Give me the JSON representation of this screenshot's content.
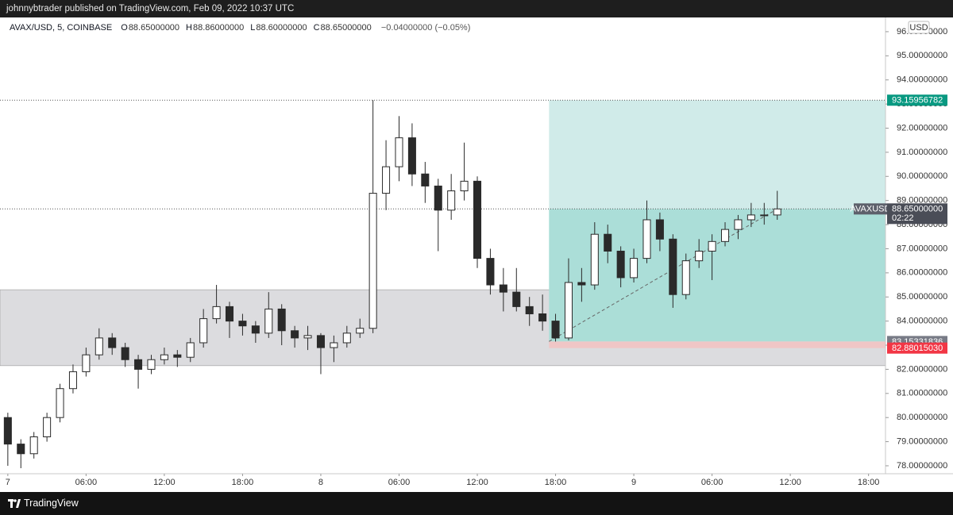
{
  "header": {
    "text": "johnnybtrader published on TradingView.com, Feb 09, 2022 10:37 UTC"
  },
  "chart_data": {
    "type": "candlestick",
    "legend": {
      "symbol": "AVAX/USD, 5, COINBASE",
      "items": [
        {
          "label": "O",
          "value": "88.65000000"
        },
        {
          "label": "H",
          "value": "88.86000000"
        },
        {
          "label": "L",
          "value": "88.60000000"
        },
        {
          "label": "C",
          "value": "88.65000000"
        }
      ],
      "change": "−0.04000000 (−0.05%)"
    },
    "currency": "USD",
    "color": "#2a2a2a",
    "x": [
      0,
      1,
      2,
      3,
      4,
      5,
      6,
      7,
      8,
      9,
      10,
      11,
      12,
      13,
      14,
      15,
      16,
      17,
      18,
      19,
      20,
      21,
      22,
      23,
      24,
      25,
      26,
      27,
      28,
      29,
      30,
      31,
      32,
      33,
      34,
      35,
      36,
      37,
      38,
      39,
      40,
      41,
      42,
      43,
      44,
      45,
      46,
      47,
      48,
      49,
      50,
      51,
      52,
      53,
      54,
      55,
      56,
      57,
      58,
      59
    ],
    "open": [
      80.0,
      78.9,
      78.5,
      79.2,
      80.0,
      81.2,
      81.9,
      82.6,
      83.3,
      82.9,
      82.4,
      82.0,
      82.4,
      82.6,
      82.5,
      83.1,
      84.1,
      84.6,
      84.0,
      83.8,
      83.5,
      84.5,
      83.6,
      83.3,
      83.4,
      82.9,
      83.1,
      83.5,
      83.7,
      89.3,
      90.4,
      91.6,
      90.1,
      89.6,
      88.6,
      89.4,
      89.8,
      86.6,
      85.5,
      85.2,
      84.6,
      84.3,
      84.0,
      83.3,
      85.6,
      85.5,
      87.6,
      86.9,
      85.8,
      86.6,
      88.2,
      87.4,
      85.1,
      86.5,
      86.9,
      87.3,
      87.8,
      88.2,
      88.4,
      88.4
    ],
    "high": [
      80.2,
      79.1,
      79.4,
      80.2,
      81.4,
      82.2,
      82.9,
      83.7,
      83.5,
      83.1,
      82.6,
      82.6,
      82.9,
      82.8,
      83.3,
      84.5,
      85.5,
      84.8,
      84.3,
      84.0,
      85.2,
      84.7,
      83.8,
      83.8,
      83.5,
      83.4,
      83.8,
      84.1,
      93.16,
      91.5,
      92.5,
      92.2,
      90.6,
      89.9,
      90.1,
      91.4,
      90.0,
      87.0,
      86.2,
      86.2,
      85.0,
      85.1,
      84.3,
      86.6,
      86.2,
      88.1,
      88.0,
      87.1,
      87.0,
      89.0,
      88.5,
      87.6,
      86.8,
      87.4,
      87.6,
      88.1,
      88.4,
      88.9,
      88.9,
      89.4
    ],
    "low": [
      78.0,
      77.9,
      78.3,
      79.0,
      79.8,
      81.0,
      81.7,
      82.4,
      82.6,
      82.1,
      81.2,
      81.8,
      82.2,
      82.1,
      82.3,
      82.9,
      83.9,
      83.3,
      83.4,
      83.1,
      83.3,
      83.0,
      82.9,
      82.8,
      81.8,
      82.3,
      82.9,
      83.3,
      83.5,
      88.6,
      89.8,
      89.6,
      88.9,
      86.9,
      88.2,
      89.0,
      86.2,
      85.1,
      84.4,
      84.4,
      83.8,
      83.6,
      83.15,
      83.2,
      84.8,
      85.3,
      86.4,
      85.4,
      85.6,
      86.4,
      86.9,
      84.55,
      84.9,
      86.2,
      85.7,
      87.1,
      87.4,
      87.9,
      88.0,
      88.2
    ],
    "close": [
      78.9,
      78.5,
      79.2,
      80.0,
      81.2,
      81.9,
      82.6,
      83.3,
      82.9,
      82.4,
      82.0,
      82.4,
      82.6,
      82.5,
      83.1,
      84.1,
      84.6,
      84.0,
      83.8,
      83.5,
      84.5,
      83.6,
      83.3,
      83.4,
      82.9,
      83.1,
      83.5,
      83.7,
      89.3,
      90.4,
      91.6,
      90.1,
      89.6,
      88.6,
      89.4,
      89.8,
      86.6,
      85.5,
      85.2,
      84.6,
      84.3,
      84.0,
      83.3,
      85.6,
      85.5,
      87.6,
      86.9,
      85.8,
      86.6,
      88.2,
      87.4,
      85.1,
      86.5,
      86.9,
      87.3,
      87.8,
      88.2,
      88.4,
      88.4,
      88.65
    ],
    "xlim": [
      -0.6,
      67.3
    ],
    "xticks": [
      {
        "value": 0,
        "label": "7"
      },
      {
        "value": 6,
        "label": "06:00"
      },
      {
        "value": 12,
        "label": "12:00"
      },
      {
        "value": 18,
        "label": "18:00"
      },
      {
        "value": 24,
        "label": "8"
      },
      {
        "value": 30,
        "label": "06:00"
      },
      {
        "value": 36,
        "label": "12:00"
      },
      {
        "value": 42,
        "label": "18:00"
      },
      {
        "value": 48,
        "label": "9"
      },
      {
        "value": 54,
        "label": "06:00"
      },
      {
        "value": 60,
        "label": "12:00"
      },
      {
        "value": 66,
        "label": "18:00"
      }
    ],
    "ylim": [
      77.67,
      96.59
    ],
    "yticks": [
      {
        "value": 78,
        "label": "78.00000000"
      },
      {
        "value": 79,
        "label": "79.00000000"
      },
      {
        "value": 80,
        "label": "80.00000000"
      },
      {
        "value": 81,
        "label": "81.00000000"
      },
      {
        "value": 82,
        "label": "82.00000000"
      },
      {
        "value": 83,
        "label": "83.00000000"
      },
      {
        "value": 84,
        "label": "84.00000000"
      },
      {
        "value": 85,
        "label": "85.00000000"
      },
      {
        "value": 86,
        "label": "86.00000000"
      },
      {
        "value": 87,
        "label": "87.00000000"
      },
      {
        "value": 88,
        "label": "88.00000000"
      },
      {
        "value": 89,
        "label": "89.00000000"
      },
      {
        "value": 90,
        "label": "90.00000000"
      },
      {
        "value": 91,
        "label": "91.00000000"
      },
      {
        "value": 92,
        "label": "92.00000000"
      },
      {
        "value": 93,
        "label": "93.00000000"
      },
      {
        "value": 94,
        "label": "94.00000000"
      },
      {
        "value": 95,
        "label": "95.00000000"
      },
      {
        "value": 96,
        "label": "96.00000000"
      }
    ],
    "grid": false,
    "zones": [
      {
        "from": 82.15,
        "to": 85.3,
        "color": "#dcdcdf"
      }
    ],
    "position": {
      "entry_x": 41.5,
      "current_x": 59,
      "entry": {
        "value": 83.15331836,
        "label": "83.15331836"
      },
      "target": {
        "value": 93.15956782,
        "label": "93.15956782"
      },
      "stop": {
        "value": 82.8801503,
        "label": "82.88015030"
      },
      "target_color": "#cdeae8",
      "profit_color": "#9fd9d2",
      "stop_color": "#f0c6c6"
    },
    "last_price": {
      "value": 88.65,
      "label": "88.65000000",
      "symbol": "AVAXUSD",
      "countdown": "02:22"
    }
  },
  "footer": {
    "brand": "TradingView"
  }
}
